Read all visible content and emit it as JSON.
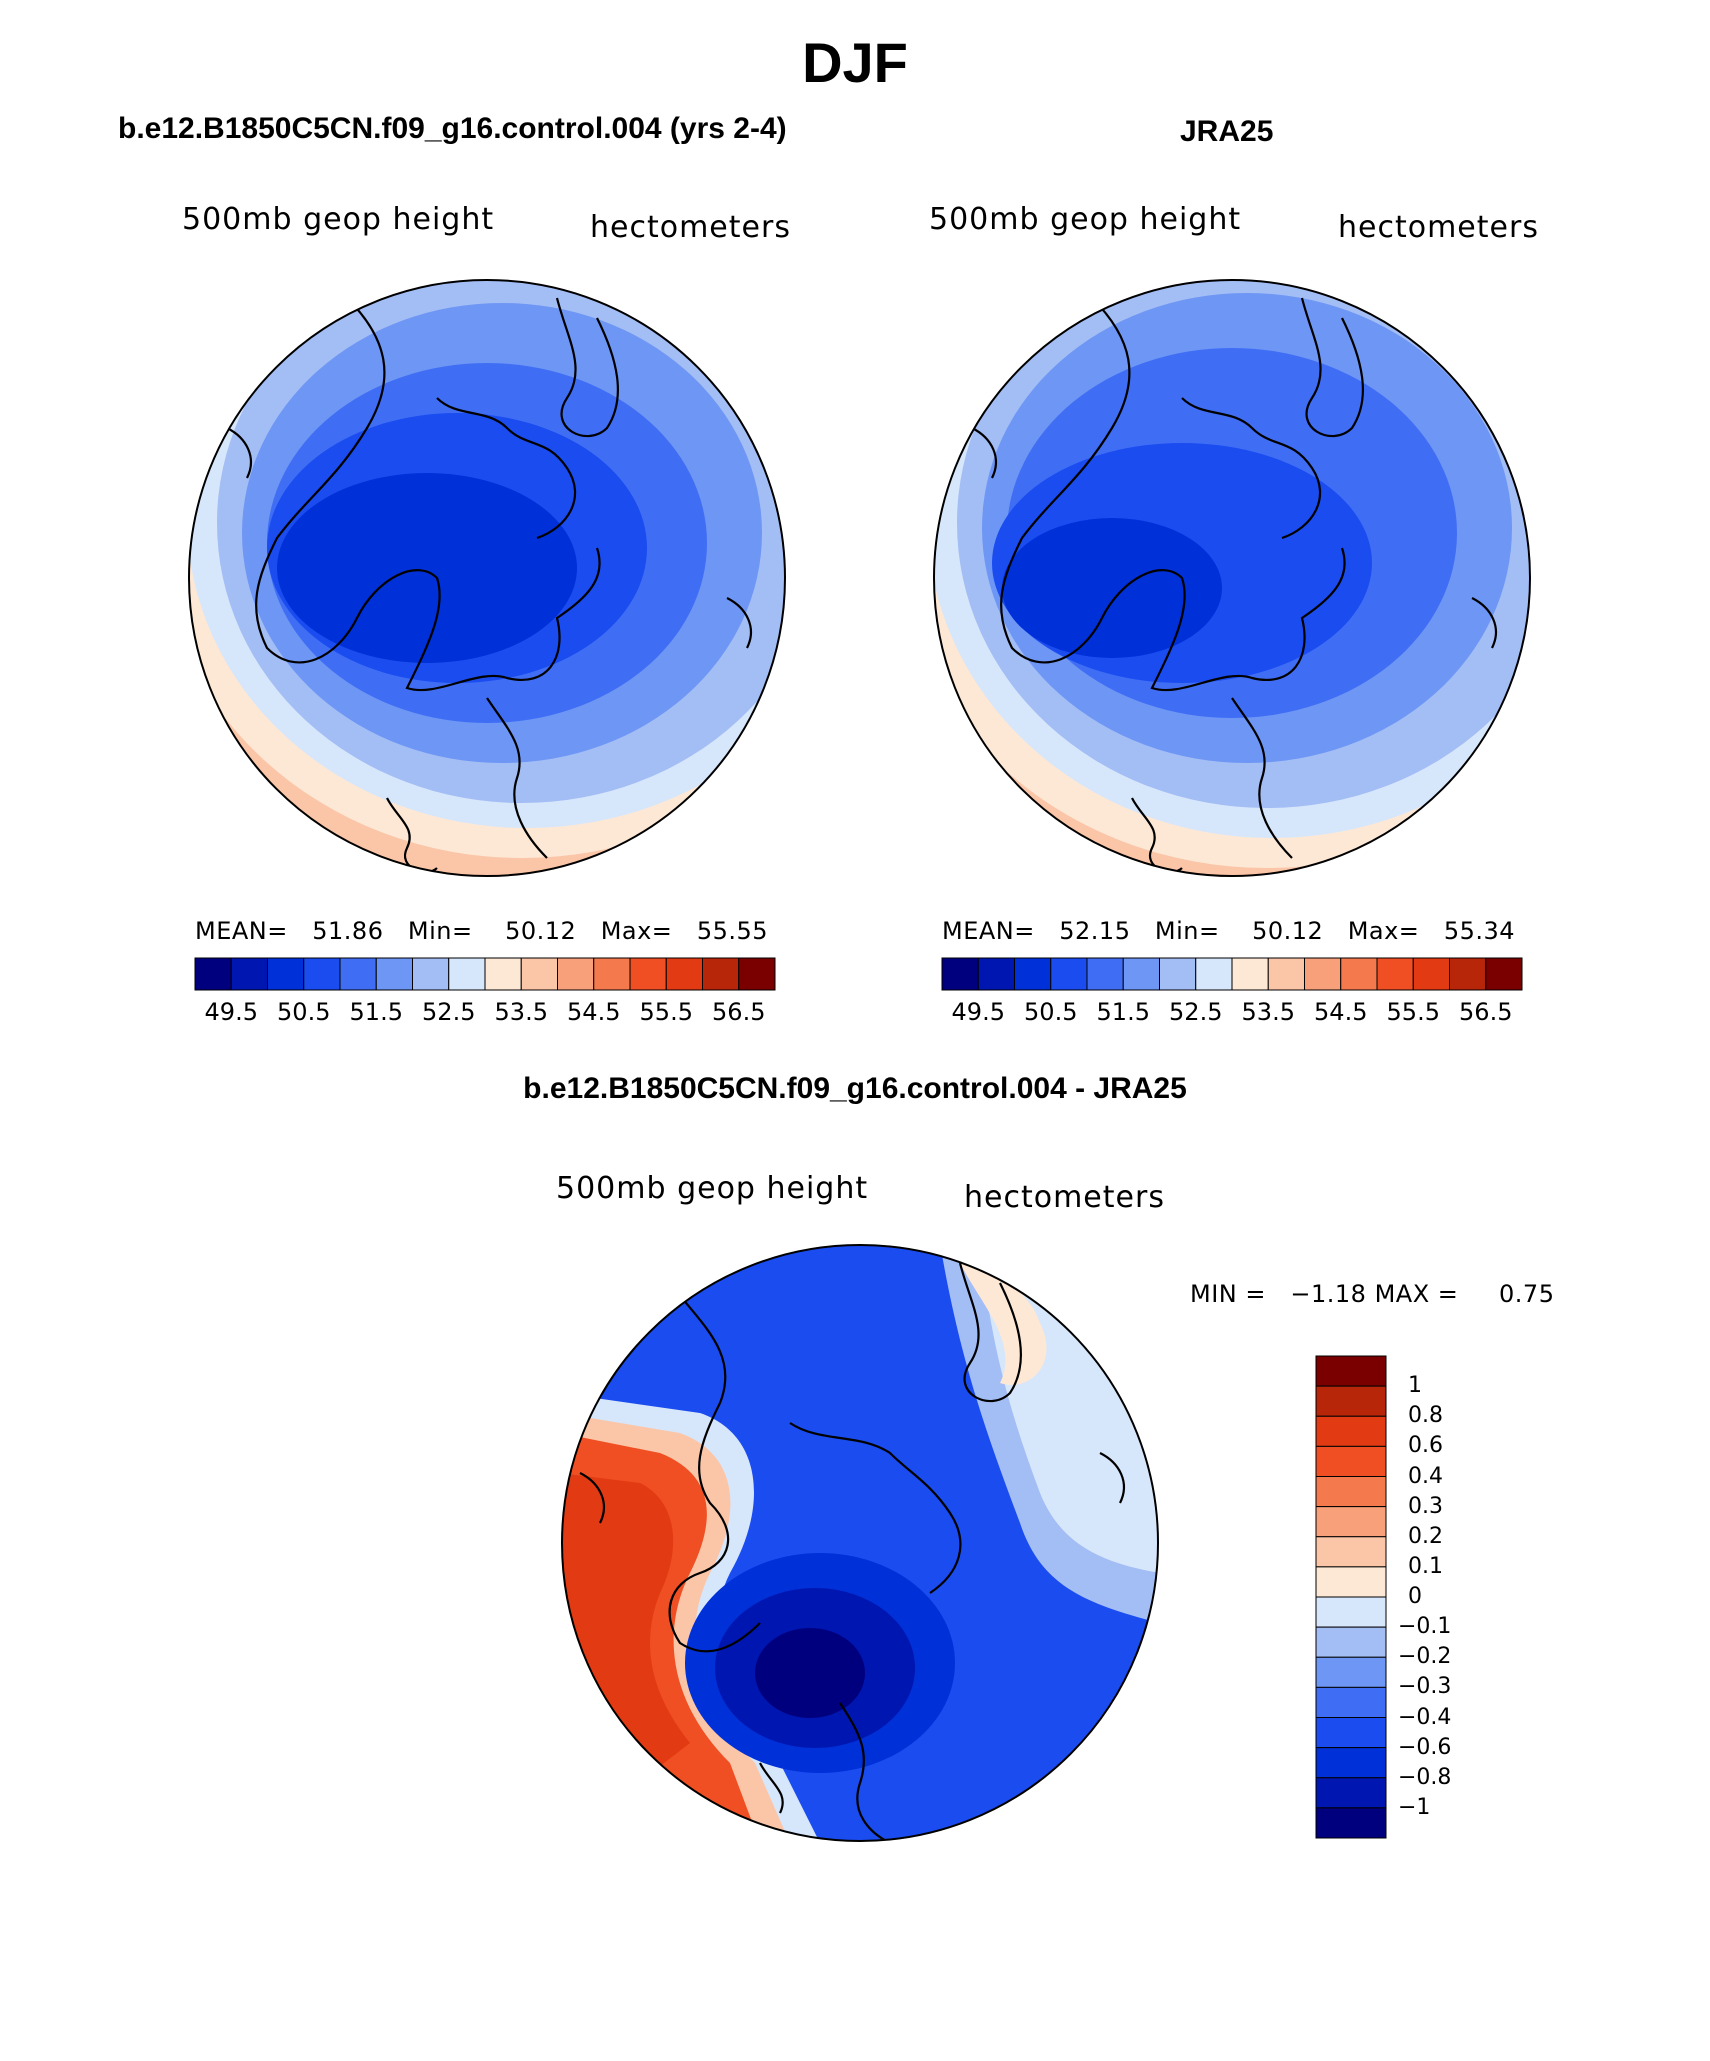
{
  "title": "DJF",
  "panels": [
    {
      "id": "model",
      "title": "b.e12.B1850C5CN.f09_g16.control.004 (yrs 2-4)",
      "field": "500mb geop height",
      "units": "hectometers",
      "stats": {
        "mean_label": "MEAN=",
        "mean": "51.86",
        "min_label": "Min=",
        "min": "50.12",
        "max_label": "Max=",
        "max": "55.55"
      }
    },
    {
      "id": "obs",
      "title": "JRA25",
      "field": "500mb geop height",
      "units": "hectometers",
      "stats": {
        "mean_label": "MEAN=",
        "mean": "52.15",
        "min_label": "Min=",
        "min": "50.12",
        "max_label": "Max=",
        "max": "55.34"
      }
    },
    {
      "id": "diff",
      "title": "b.e12.B1850C5CN.f09_g16.control.004 - JRA25",
      "field": "500mb geop height",
      "units": "hectometers",
      "stats": {
        "min_label": "MIN =",
        "min": "−1.18",
        "max_label": "MAX =",
        "max": "0.75"
      }
    }
  ],
  "colorbar_main": {
    "colors": [
      "#00007f",
      "#0016b0",
      "#0030d8",
      "#1a4cf0",
      "#3f6ef5",
      "#6e96f4",
      "#a3bdf5",
      "#d6e6fb",
      "#fde8d6",
      "#fbc6a8",
      "#f7a07a",
      "#f47a4e",
      "#ef4f22",
      "#e23a13",
      "#b8260a",
      "#7a0000"
    ],
    "labels": [
      "49.5",
      "50.5",
      "51.5",
      "52.5",
      "53.5",
      "54.5",
      "55.5",
      "56.5"
    ]
  },
  "colorbar_diff": {
    "colors": [
      "#00007f",
      "#0016b0",
      "#0030d8",
      "#1a4cf0",
      "#3f6ef5",
      "#6e96f4",
      "#a3bdf5",
      "#d6e6fb",
      "#fde8d6",
      "#fbc6a8",
      "#f7a07a",
      "#f47a4e",
      "#ef4f22",
      "#e23a13",
      "#b8260a",
      "#7a0000"
    ],
    "labels": [
      "1",
      "0.8",
      "0.6",
      "0.4",
      "0.3",
      "0.2",
      "0.1",
      "0",
      "−0.1",
      "−0.2",
      "−0.3",
      "−0.4",
      "−0.6",
      "−0.8",
      "−1"
    ]
  }
}
